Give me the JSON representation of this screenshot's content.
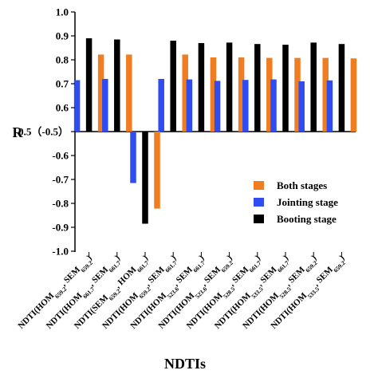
{
  "chart_data": {
    "type": "bar",
    "title": "",
    "xlabel": "NDTIs",
    "ylabel": "R",
    "ylim": [
      -1.0,
      1.0
    ],
    "axis_break_value": 0.5,
    "yticks": [
      {
        "value": 1.0,
        "label": "1.0"
      },
      {
        "value": 0.9,
        "label": "0.9"
      },
      {
        "value": 0.8,
        "label": "0.8"
      },
      {
        "value": 0.7,
        "label": "0.7"
      },
      {
        "value": 0.6,
        "label": "0.6"
      },
      {
        "value": 0.5,
        "label": "0.5（-0.5）"
      },
      {
        "value": -0.6,
        "label": "-0.6"
      },
      {
        "value": -0.7,
        "label": "-0.7"
      },
      {
        "value": -0.8,
        "label": "-0.8"
      },
      {
        "value": -0.9,
        "label": "-0.9"
      },
      {
        "value": -1.0,
        "label": "-1.0"
      }
    ],
    "categories": [
      {
        "pre": "NDTI(HOM",
        "s1": "659.2",
        "mid": ", SEM",
        "s2": "659.2",
        "post": ")"
      },
      {
        "pre": "NDTI(HOM",
        "s1": "661.7",
        "mid": ", SEM",
        "s2": "661.7",
        "post": ")"
      },
      {
        "pre": "NDTI(SEM",
        "s1": "659.2",
        "mid": ", HOM",
        "s2": "661.7",
        "post": ")"
      },
      {
        "pre": "NDTI(HOM",
        "s1": "659.2",
        "mid": ", SEM",
        "s2": "661.7",
        "post": ")"
      },
      {
        "pre": "NDTI(HOM",
        "s1": "523.6",
        "mid": ", SEM",
        "s2": "661.7",
        "post": ")"
      },
      {
        "pre": "NDTI(HOM",
        "s1": "523.6",
        "mid": ", SEM",
        "s2": "659.2",
        "post": ")"
      },
      {
        "pre": "NDTI(HOM",
        "s1": "528.5",
        "mid": ", SEM",
        "s2": "661.7",
        "post": ")"
      },
      {
        "pre": "NDTI(HOM",
        "s1": "533.5",
        "mid": ", SEM",
        "s2": "661.7",
        "post": ")"
      },
      {
        "pre": "NDTI(HOM",
        "s1": "528.5",
        "mid": ", SEM",
        "s2": "659.2",
        "post": ")"
      },
      {
        "pre": "NDTI(HOM",
        "s1": "533.5",
        "mid": ", SEM",
        "s2": "659.2",
        "post": ")"
      }
    ],
    "series": [
      {
        "name": "Jointing stage",
        "color": "#2e4cf0",
        "values": [
          0.715,
          0.72,
          -0.715,
          0.72,
          0.718,
          0.712,
          0.716,
          0.718,
          0.71,
          0.714
        ]
      },
      {
        "name": "Booting stage",
        "color": "#000000",
        "values": [
          0.89,
          0.885,
          -0.885,
          0.88,
          0.87,
          0.872,
          0.866,
          0.863,
          0.872,
          0.866
        ]
      },
      {
        "name": "Both stages",
        "color": "#f07d22",
        "values": [
          0.822,
          0.822,
          -0.822,
          0.822,
          0.81,
          0.81,
          0.808,
          0.808,
          0.808,
          0.806
        ]
      }
    ],
    "legend": {
      "placement": "right-middle",
      "entries": [
        {
          "name": "Both stages",
          "color": "#f07d22"
        },
        {
          "name": "Jointing stage",
          "color": "#2e4cf0"
        },
        {
          "name": "Booting stage",
          "color": "#000000"
        }
      ]
    },
    "grid": false
  }
}
